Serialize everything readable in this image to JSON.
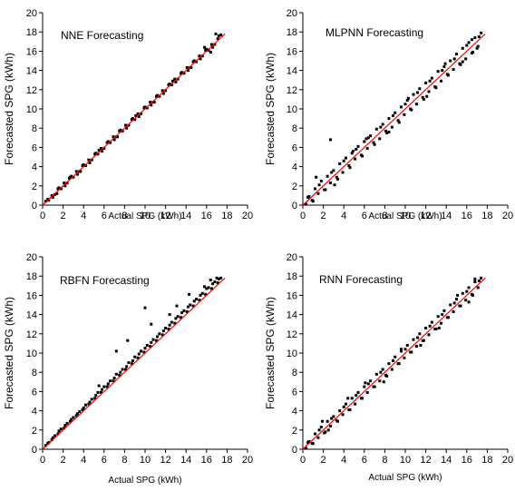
{
  "colors": {
    "points": "#000000",
    "fit_line": "#ff0000",
    "axes": "#000000"
  },
  "chart_data": [
    {
      "type": "scatter",
      "title": "NNE Forecasting",
      "xlabel": "Actual SPG (kWh)",
      "ylabel": "Forecasted SPG (kWh)",
      "xlim": [
        0,
        20
      ],
      "ylim": [
        0,
        20
      ],
      "xticks": [
        "0",
        "2",
        "4",
        "6",
        "8",
        "10",
        "12",
        "14",
        "16",
        "18",
        "20"
      ],
      "yticks": [
        "0",
        "2",
        "4",
        "6",
        "8",
        "10",
        "12",
        "14",
        "16",
        "18",
        "20"
      ],
      "grid": false,
      "fit_line": {
        "x": [
          0,
          17.8
        ],
        "y": [
          0,
          17.8
        ]
      },
      "series": [
        {
          "x": [
            0.3,
            0.6,
            0.9,
            1.2,
            1.5,
            1.8,
            2.1,
            2.4,
            2.7,
            3.0,
            3.3,
            3.6,
            3.9,
            4.2,
            4.5,
            4.8,
            5.1,
            5.4,
            5.7,
            6.0,
            6.3,
            6.6,
            6.9,
            7.2,
            7.5,
            7.8,
            8.1,
            8.4,
            8.7,
            9.0,
            9.3,
            9.6,
            9.9,
            10.2,
            10.5,
            10.8,
            11.1,
            11.4,
            11.7,
            12.0,
            12.3,
            12.6,
            12.9,
            13.2,
            13.5,
            13.8,
            14.1,
            14.4,
            14.7,
            15.0,
            15.3,
            15.6,
            15.9,
            16.2,
            16.5,
            16.8,
            17.1,
            17.4,
            0.5,
            1.0,
            1.6,
            2.2,
            2.8,
            3.4,
            4.0,
            4.6,
            5.2,
            5.8,
            6.4,
            7.0,
            7.6,
            8.2,
            8.8,
            9.4,
            10.0,
            10.6,
            11.2,
            11.8,
            12.4,
            13.0,
            13.6,
            14.2,
            14.8,
            15.4,
            16.0,
            16.6,
            17.2,
            1.4,
            2.6,
            3.7,
            5.5,
            7.3,
            9.1,
            10.9,
            12.7,
            14.5,
            15.8,
            16.4,
            16.9
          ],
          "y": [
            0.4,
            0.5,
            1.0,
            1.1,
            1.7,
            1.7,
            2.3,
            2.3,
            2.9,
            2.9,
            3.5,
            3.5,
            4.1,
            4.1,
            4.7,
            4.7,
            5.3,
            5.3,
            5.9,
            5.9,
            6.5,
            6.5,
            7.1,
            7.1,
            7.7,
            7.7,
            8.3,
            8.3,
            8.9,
            8.9,
            9.5,
            9.5,
            10.1,
            10.1,
            10.7,
            10.7,
            11.3,
            11.3,
            11.9,
            11.9,
            12.5,
            12.5,
            13.1,
            13.1,
            13.7,
            13.7,
            14.3,
            14.3,
            14.9,
            14.9,
            15.5,
            15.5,
            16.1,
            16.1,
            16.7,
            16.7,
            17.3,
            17.7,
            0.6,
            0.8,
            1.8,
            2.0,
            3.0,
            3.2,
            4.2,
            4.4,
            5.4,
            5.6,
            6.6,
            6.8,
            7.8,
            8.0,
            9.0,
            9.2,
            10.2,
            10.4,
            11.4,
            11.6,
            12.6,
            12.8,
            13.8,
            14.0,
            15.0,
            15.2,
            16.2,
            16.4,
            17.6,
            1.2,
            2.8,
            3.5,
            5.7,
            7.1,
            9.3,
            10.7,
            12.9,
            14.3,
            16.4,
            15.9,
            17.8
          ]
        }
      ]
    },
    {
      "type": "scatter",
      "title": "MLPNN Forecasting",
      "xlabel": "Actual SPG (kWh)",
      "ylabel": "Forecasted SPG (kWh)",
      "xlim": [
        0,
        20
      ],
      "ylim": [
        0,
        20
      ],
      "xticks": [
        "0",
        "2",
        "4",
        "6",
        "8",
        "10",
        "12",
        "14",
        "16",
        "18",
        "20"
      ],
      "yticks": [
        "0",
        "2",
        "4",
        "6",
        "8",
        "10",
        "12",
        "14",
        "16",
        "18",
        "20"
      ],
      "grid": false,
      "fit_line": {
        "x": [
          0,
          17.8
        ],
        "y": [
          0,
          17.8
        ]
      },
      "series": [
        {
          "x": [
            0.3,
            0.6,
            0.9,
            1.2,
            1.5,
            1.8,
            2.1,
            2.4,
            2.7,
            3.0,
            3.3,
            3.6,
            3.9,
            4.2,
            4.5,
            4.8,
            5.1,
            5.4,
            5.7,
            6.0,
            6.3,
            6.6,
            6.9,
            7.2,
            7.5,
            7.8,
            8.1,
            8.4,
            8.7,
            9.0,
            9.3,
            9.6,
            9.9,
            10.2,
            10.5,
            10.8,
            11.1,
            11.4,
            11.7,
            12.0,
            12.3,
            12.6,
            12.9,
            13.2,
            13.5,
            13.8,
            14.1,
            14.4,
            14.7,
            15.0,
            15.3,
            15.6,
            15.9,
            16.2,
            16.5,
            16.8,
            17.1,
            17.4,
            0.5,
            1.0,
            1.6,
            2.2,
            2.8,
            3.4,
            4.0,
            4.6,
            5.2,
            5.8,
            6.4,
            7.0,
            7.6,
            8.2,
            8.8,
            9.4,
            10.0,
            10.6,
            11.2,
            11.8,
            12.4,
            13.0,
            13.6,
            14.2,
            14.8,
            15.4,
            16.0,
            16.6,
            17.2,
            2.7,
            1.3,
            3.1,
            4.9,
            6.2,
            8.4,
            10.3,
            12.1,
            13.9,
            15.6,
            16.5,
            17.0
          ],
          "y": [
            0.1,
            0.9,
            0.5,
            1.7,
            1.2,
            2.5,
            1.6,
            3.0,
            2.3,
            3.6,
            2.9,
            4.3,
            3.4,
            4.9,
            4.1,
            5.4,
            4.8,
            6.1,
            5.2,
            6.6,
            5.9,
            7.2,
            6.5,
            7.9,
            6.9,
            8.4,
            7.7,
            9.0,
            8.1,
            9.6,
            8.8,
            10.2,
            9.4,
            10.9,
            10.0,
            11.5,
            10.5,
            12.1,
            11.2,
            12.7,
            11.8,
            13.2,
            12.3,
            13.9,
            12.9,
            14.4,
            13.6,
            15.0,
            14.1,
            15.7,
            14.7,
            16.3,
            15.2,
            16.9,
            15.8,
            17.4,
            16.5,
            17.9,
            0.8,
            0.4,
            2.1,
            1.6,
            3.4,
            2.7,
            4.6,
            3.9,
            5.8,
            5.1,
            7.0,
            6.3,
            8.1,
            7.5,
            9.3,
            8.6,
            10.5,
            9.9,
            11.7,
            11.0,
            12.9,
            12.2,
            14.0,
            13.5,
            15.2,
            14.6,
            16.6,
            15.9,
            17.5,
            6.8,
            2.9,
            2.1,
            5.6,
            6.9,
            7.6,
            11.1,
            11.3,
            14.7,
            14.9,
            17.2,
            16.3
          ]
        }
      ]
    },
    {
      "type": "scatter",
      "title": "RBFN Forecasting",
      "xlabel": "Actual SPG (kWh)",
      "ylabel": "Forecasted SPG (kWh)",
      "xlim": [
        0,
        20
      ],
      "ylim": [
        0,
        20
      ],
      "xticks": [
        "0",
        "2",
        "4",
        "6",
        "8",
        "10",
        "12",
        "14",
        "16",
        "18",
        "20"
      ],
      "yticks": [
        "0",
        "2",
        "4",
        "6",
        "8",
        "10",
        "12",
        "14",
        "16",
        "18",
        "20"
      ],
      "grid": false,
      "fit_line": {
        "x": [
          0,
          17.8
        ],
        "y": [
          0,
          17.8
        ]
      },
      "series": [
        {
          "x": [
            0.3,
            0.6,
            0.9,
            1.2,
            1.5,
            1.8,
            2.1,
            2.4,
            2.7,
            3.0,
            3.3,
            3.6,
            3.9,
            4.2,
            4.5,
            4.8,
            5.1,
            5.4,
            5.7,
            6.0,
            6.3,
            6.6,
            6.9,
            7.2,
            7.5,
            7.8,
            8.1,
            8.4,
            8.7,
            9.0,
            9.3,
            9.6,
            9.9,
            10.2,
            10.5,
            10.8,
            11.1,
            11.4,
            11.7,
            12.0,
            12.3,
            12.6,
            12.9,
            13.2,
            13.5,
            13.8,
            14.1,
            14.4,
            14.7,
            15.0,
            15.3,
            15.6,
            15.9,
            16.2,
            16.5,
            16.8,
            17.1,
            17.4,
            0.5,
            1.0,
            1.6,
            2.2,
            2.8,
            3.4,
            4.0,
            4.6,
            5.2,
            5.8,
            6.4,
            7.0,
            7.6,
            8.2,
            8.8,
            9.4,
            10.0,
            10.6,
            11.2,
            11.8,
            12.4,
            13.0,
            13.6,
            14.2,
            14.8,
            15.4,
            16.0,
            16.6,
            17.2,
            10.0,
            7.2,
            8.3,
            10.6,
            12.4,
            13.1,
            14.3,
            15.8,
            16.4,
            17.0,
            5.5
          ],
          "y": [
            0.4,
            0.7,
            1.0,
            1.4,
            1.6,
            2.1,
            2.2,
            2.7,
            2.9,
            3.3,
            3.5,
            3.9,
            4.1,
            4.6,
            4.7,
            5.2,
            5.3,
            5.9,
            5.9,
            6.5,
            6.5,
            7.1,
            7.1,
            7.8,
            7.7,
            8.3,
            8.3,
            9.0,
            8.9,
            9.6,
            9.5,
            10.2,
            10.1,
            10.8,
            10.7,
            11.4,
            11.3,
            12.0,
            11.9,
            12.6,
            12.5,
            13.2,
            13.1,
            13.8,
            13.7,
            14.4,
            14.3,
            15.0,
            14.9,
            15.6,
            15.5,
            16.2,
            16.1,
            16.8,
            16.7,
            17.4,
            17.3,
            17.8,
            0.6,
            1.2,
            1.9,
            2.5,
            3.1,
            3.7,
            4.3,
            4.9,
            5.6,
            6.2,
            6.8,
            7.4,
            8.0,
            8.6,
            9.2,
            9.9,
            10.5,
            11.1,
            11.7,
            12.3,
            12.9,
            13.6,
            14.2,
            14.8,
            15.4,
            16.0,
            16.7,
            17.2,
            17.7,
            14.7,
            10.2,
            11.3,
            13.0,
            14.0,
            14.9,
            16.1,
            16.9,
            17.6,
            17.8,
            6.6
          ]
        }
      ]
    },
    {
      "type": "scatter",
      "title": "RNN Forecasting",
      "xlabel": "Actual SPG (kWh)",
      "ylabel": "Forecasted SPG (kWh)",
      "xlim": [
        0,
        20
      ],
      "ylim": [
        0,
        20
      ],
      "xticks": [
        "0",
        "2",
        "4",
        "6",
        "8",
        "10",
        "12",
        "14",
        "16",
        "18",
        "20"
      ],
      "yticks": [
        "0",
        "2",
        "4",
        "6",
        "8",
        "10",
        "12",
        "14",
        "16",
        "18",
        "20"
      ],
      "grid": false,
      "fit_line": {
        "x": [
          0,
          17.8
        ],
        "y": [
          0,
          17.8
        ]
      },
      "series": [
        {
          "x": [
            0.3,
            0.6,
            0.9,
            1.2,
            1.5,
            1.8,
            2.1,
            2.4,
            2.7,
            3.0,
            3.3,
            3.6,
            3.9,
            4.2,
            4.5,
            4.8,
            5.1,
            5.4,
            5.7,
            6.0,
            6.3,
            6.6,
            6.9,
            7.2,
            7.5,
            7.8,
            8.1,
            8.4,
            8.7,
            9.0,
            9.3,
            9.6,
            9.9,
            10.2,
            10.5,
            10.8,
            11.1,
            11.4,
            11.7,
            12.0,
            12.3,
            12.6,
            12.9,
            13.2,
            13.5,
            13.8,
            14.1,
            14.4,
            14.7,
            15.0,
            15.3,
            15.6,
            15.9,
            16.2,
            16.5,
            16.8,
            17.1,
            17.4,
            0.5,
            1.0,
            1.6,
            2.2,
            2.8,
            3.4,
            4.0,
            4.6,
            5.2,
            5.8,
            6.4,
            7.0,
            7.6,
            8.2,
            8.8,
            9.4,
            10.0,
            10.6,
            11.2,
            11.8,
            12.4,
            13.0,
            13.6,
            14.2,
            14.8,
            15.4,
            16.0,
            16.6,
            17.2,
            2.5,
            4.4,
            6.1,
            7.9,
            9.6,
            11.5,
            13.3,
            15.1,
            16.2,
            16.8,
            1.9
          ],
          "y": [
            0.1,
            0.8,
            0.6,
            1.6,
            1.2,
            2.3,
            1.7,
            2.9,
            2.4,
            3.4,
            3.0,
            4.0,
            3.6,
            4.7,
            4.1,
            5.3,
            4.7,
            5.9,
            5.3,
            6.5,
            5.9,
            7.1,
            6.5,
            7.8,
            7.1,
            8.3,
            7.7,
            8.9,
            8.3,
            9.6,
            8.9,
            10.2,
            9.5,
            10.8,
            10.1,
            11.4,
            10.7,
            12.0,
            11.3,
            12.6,
            11.9,
            13.2,
            12.5,
            13.8,
            13.1,
            14.4,
            13.7,
            15.0,
            14.3,
            15.6,
            14.9,
            16.2,
            15.5,
            16.8,
            16.1,
            17.4,
            16.8,
            17.8,
            0.7,
            0.6,
            2.0,
            1.8,
            3.2,
            2.9,
            4.4,
            4.1,
            5.6,
            5.3,
            6.8,
            6.5,
            8.0,
            7.6,
            9.2,
            8.9,
            10.4,
            10.1,
            11.6,
            11.3,
            12.8,
            12.5,
            14.0,
            13.7,
            15.2,
            14.9,
            16.4,
            16.0,
            17.5,
            2.0,
            5.3,
            6.9,
            7.0,
            10.4,
            10.8,
            12.6,
            16.0,
            15.3,
            17.7,
            2.9
          ]
        }
      ]
    }
  ]
}
